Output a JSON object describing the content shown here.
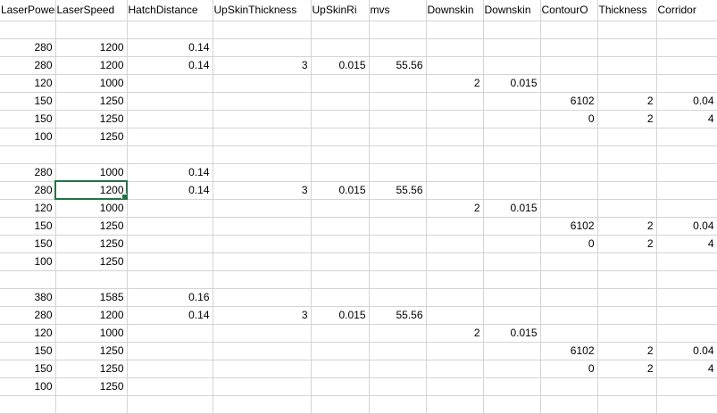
{
  "sheet": {
    "headers": [
      "LaserPower",
      "LaserSpeed",
      "HatchDistance",
      "UpSkinThickness",
      "UpSkinRi",
      "mvs",
      "Downskin",
      "Downskin",
      "ContourO",
      "Thickness",
      "Corridor"
    ],
    "rows": [
      [
        "",
        "",
        "",
        "",
        "",
        "",
        "",
        "",
        "",
        "",
        ""
      ],
      [
        "280",
        "1200",
        "0.14",
        "",
        "",
        "",
        "",
        "",
        "",
        "",
        ""
      ],
      [
        "280",
        "1200",
        "0.14",
        "3",
        "0.015",
        "55.56",
        "",
        "",
        "",
        "",
        ""
      ],
      [
        "120",
        "1000",
        "",
        "",
        "",
        "",
        "2",
        "0.015",
        "",
        "",
        ""
      ],
      [
        "150",
        "1250",
        "",
        "",
        "",
        "",
        "",
        "",
        "6102",
        "2",
        "0.04"
      ],
      [
        "150",
        "1250",
        "",
        "",
        "",
        "",
        "",
        "",
        "0",
        "2",
        "4"
      ],
      [
        "100",
        "1250",
        "",
        "",
        "",
        "",
        "",
        "",
        "",
        "",
        ""
      ],
      [
        "",
        "",
        "",
        "",
        "",
        "",
        "",
        "",
        "",
        "",
        ""
      ],
      [
        "280",
        "1000",
        "0.14",
        "",
        "",
        "",
        "",
        "",
        "",
        "",
        ""
      ],
      [
        "280",
        "1200",
        "0.14",
        "3",
        "0.015",
        "55.56",
        "",
        "",
        "",
        "",
        ""
      ],
      [
        "120",
        "1000",
        "",
        "",
        "",
        "",
        "2",
        "0.015",
        "",
        "",
        ""
      ],
      [
        "150",
        "1250",
        "",
        "",
        "",
        "",
        "",
        "",
        "6102",
        "2",
        "0.04"
      ],
      [
        "150",
        "1250",
        "",
        "",
        "",
        "",
        "",
        "",
        "0",
        "2",
        "4"
      ],
      [
        "100",
        "1250",
        "",
        "",
        "",
        "",
        "",
        "",
        "",
        "",
        ""
      ],
      [
        "",
        "",
        "",
        "",
        "",
        "",
        "",
        "",
        "",
        "",
        ""
      ],
      [
        "380",
        "1585",
        "0.16",
        "",
        "",
        "",
        "",
        "",
        "",
        "",
        ""
      ],
      [
        "280",
        "1200",
        "0.14",
        "3",
        "0.015",
        "55.56",
        "",
        "",
        "",
        "",
        ""
      ],
      [
        "120",
        "1000",
        "",
        "",
        "",
        "",
        "2",
        "0.015",
        "",
        "",
        ""
      ],
      [
        "150",
        "1250",
        "",
        "",
        "",
        "",
        "",
        "",
        "6102",
        "2",
        "0.04"
      ],
      [
        "150",
        "1250",
        "",
        "",
        "",
        "",
        "",
        "",
        "0",
        "2",
        "4"
      ],
      [
        "100",
        "1250",
        "",
        "",
        "",
        "",
        "",
        "",
        "",
        "",
        ""
      ],
      [
        "",
        "",
        "",
        "",
        "",
        "",
        "",
        "",
        "",
        "",
        ""
      ]
    ],
    "active_cell": {
      "row": 9,
      "col": 1
    },
    "selection_color": "#217346",
    "gridline_color": "#d4d4d4"
  }
}
